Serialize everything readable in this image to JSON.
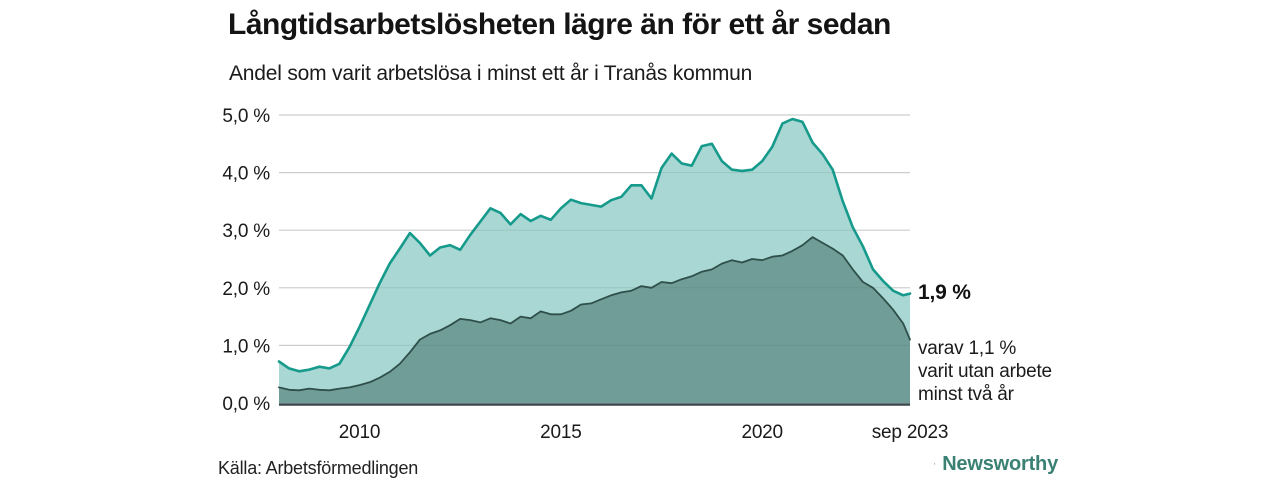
{
  "header": {
    "title": "Långtidsarbetslösheten lägre än för ett år sedan",
    "subtitle": "Andel som varit arbetslösa i minst ett år i Tranås kommun"
  },
  "annotations": {
    "end_value_label": "1,9 %",
    "end_sub_lines": [
      "varav 1,1 %",
      "varit utan arbete",
      "minst två år"
    ]
  },
  "source_note": "Källa: Arbetsförmedlingen",
  "branding": {
    "name": "Newsworthy",
    "logo_icon": "bar-chart-speech-bubble-icon"
  },
  "colors": {
    "accent_line": "#159a8c",
    "accent_fill": "#a6d6d2",
    "dark_line": "#2f4f4a",
    "dark_fill": "#6f9b96",
    "gridline": "#dcdcdc",
    "axis_line": "#37474a",
    "brand_teal": "#3a8174",
    "text": "#141414"
  },
  "chart_data": {
    "type": "area",
    "title": "Långtidsarbetslösheten lägre än för ett år sedan",
    "subtitle": "Andel som varit arbetslösa i minst ett år i Tranås kommun",
    "xlabel": "",
    "ylabel": "",
    "xlim": [
      2008,
      2023.67
    ],
    "ylim": [
      0,
      5
    ],
    "grid": true,
    "legend": "none",
    "x": [
      2008,
      2008.25,
      2008.5,
      2008.75,
      2009,
      2009.25,
      2009.5,
      2009.75,
      2010,
      2010.25,
      2010.5,
      2010.75,
      2011,
      2011.25,
      2011.5,
      2011.75,
      2012,
      2012.25,
      2012.5,
      2012.75,
      2013,
      2013.25,
      2013.5,
      2013.75,
      2014,
      2014.25,
      2014.5,
      2014.75,
      2015,
      2015.25,
      2015.5,
      2015.75,
      2016,
      2016.25,
      2016.5,
      2016.75,
      2017,
      2017.25,
      2017.5,
      2017.75,
      2018,
      2018.25,
      2018.5,
      2018.75,
      2019,
      2019.25,
      2019.5,
      2019.75,
      2020,
      2020.25,
      2020.5,
      2020.75,
      2021,
      2021.25,
      2021.5,
      2021.75,
      2022,
      2022.25,
      2022.5,
      2022.75,
      2023,
      2023.25,
      2023.5,
      2023.67
    ],
    "series": [
      {
        "name": "Arbetslösa minst ett år",
        "end_value": "1,9 %",
        "line_color": "#159a8c",
        "fill_color": "#a6d6d2",
        "values": [
          0.72,
          0.6,
          0.55,
          0.58,
          0.63,
          0.6,
          0.68,
          0.97,
          1.32,
          1.7,
          2.08,
          2.42,
          2.68,
          2.95,
          2.78,
          2.56,
          2.7,
          2.74,
          2.66,
          2.92,
          3.15,
          3.38,
          3.3,
          3.1,
          3.28,
          3.16,
          3.25,
          3.18,
          3.38,
          3.53,
          3.47,
          3.44,
          3.41,
          3.52,
          3.58,
          3.78,
          3.78,
          3.55,
          4.08,
          4.33,
          4.16,
          4.12,
          4.46,
          4.5,
          4.2,
          4.05,
          4.03,
          4.05,
          4.2,
          4.45,
          4.85,
          4.93,
          4.88,
          4.52,
          4.32,
          4.05,
          3.5,
          3.05,
          2.72,
          2.32,
          2.12,
          1.95,
          1.87,
          1.9
        ]
      },
      {
        "name": "Varit utan arbete minst två år",
        "end_value": "1,1 %",
        "line_color": "#2f4f4a",
        "fill_color": "#6f9b96",
        "values": [
          0.27,
          0.23,
          0.22,
          0.25,
          0.23,
          0.22,
          0.25,
          0.27,
          0.31,
          0.36,
          0.44,
          0.54,
          0.68,
          0.88,
          1.1,
          1.2,
          1.26,
          1.35,
          1.46,
          1.44,
          1.4,
          1.47,
          1.44,
          1.38,
          1.5,
          1.47,
          1.59,
          1.54,
          1.54,
          1.6,
          1.71,
          1.73,
          1.8,
          1.87,
          1.92,
          1.95,
          2.03,
          2.0,
          2.1,
          2.08,
          2.15,
          2.2,
          2.28,
          2.32,
          2.42,
          2.48,
          2.44,
          2.5,
          2.48,
          2.54,
          2.56,
          2.64,
          2.74,
          2.88,
          2.78,
          2.68,
          2.56,
          2.32,
          2.1,
          2.0,
          1.82,
          1.62,
          1.38,
          1.1
        ]
      }
    ],
    "y_ticks": [
      {
        "value": 5,
        "label": "5,0 %"
      },
      {
        "value": 4,
        "label": "4,0 %"
      },
      {
        "value": 3,
        "label": "3,0 %"
      },
      {
        "value": 2,
        "label": "2,0 %"
      },
      {
        "value": 1,
        "label": "1,0 %"
      },
      {
        "value": 0,
        "label": "0,0 %"
      }
    ],
    "x_ticks": [
      {
        "value": 2010,
        "label": "2010"
      },
      {
        "value": 2015,
        "label": "2015"
      },
      {
        "value": 2020,
        "label": "2020"
      },
      {
        "value": 2023.67,
        "label": "sep 2023"
      }
    ]
  }
}
